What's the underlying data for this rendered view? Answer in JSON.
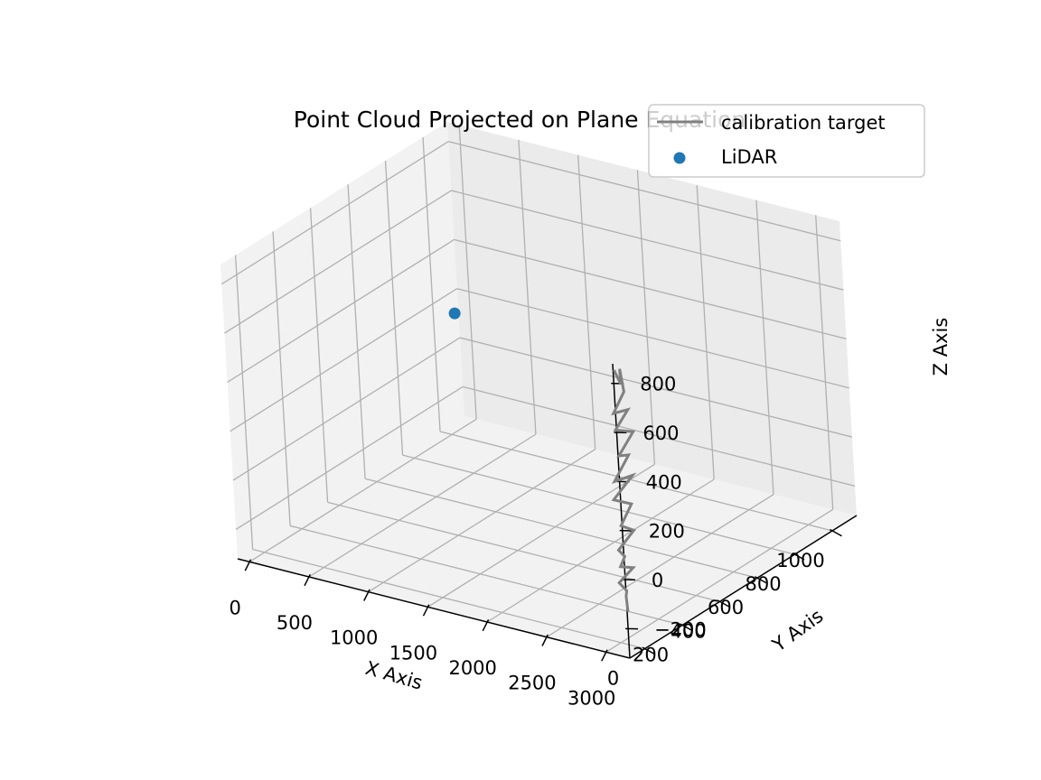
{
  "chart_data": {
    "type": "scatter3d",
    "title": "Point Cloud Projected on Plane Equation",
    "xlabel": "X Axis",
    "ylabel": "Y Axis",
    "zlabel": "Z Axis",
    "xlim": [
      -100,
      3200
    ],
    "ylim": [
      -80,
      1130
    ],
    "zlim": [
      -320,
      880
    ],
    "xticks": [
      0,
      500,
      1000,
      1500,
      2000,
      2500,
      3000
    ],
    "yticks": [
      0,
      200,
      400,
      600,
      800,
      1000
    ],
    "zticks": [
      -200,
      0,
      200,
      400,
      600,
      800
    ],
    "ztick_labels": [
      "−200",
      "0",
      "200",
      "400",
      "600",
      "800"
    ],
    "grid": true,
    "legend_position": "top-right",
    "series": [
      {
        "name": "calibration target",
        "kind": "line",
        "color": "#808080",
        "points": [
          [
            3000,
            45,
            -215
          ],
          [
            3000,
            40,
            -150
          ],
          [
            3000,
            45,
            -130
          ],
          [
            3000,
            8,
            -80
          ],
          [
            3000,
            85,
            -55
          ],
          [
            3000,
            20,
            -20
          ],
          [
            3000,
            45,
            10
          ],
          [
            3000,
            15,
            50
          ],
          [
            3000,
            100,
            90
          ],
          [
            3000,
            35,
            140
          ],
          [
            3000,
            95,
            200
          ],
          [
            3000,
            5,
            260
          ],
          [
            3000,
            110,
            310
          ],
          [
            3000,
            15,
            330
          ],
          [
            3000,
            95,
            400
          ],
          [
            3000,
            45,
            420
          ],
          [
            3000,
            125,
            480
          ],
          [
            3000,
            35,
            530
          ],
          [
            3000,
            105,
            580
          ],
          [
            3000,
            30,
            600
          ],
          [
            3000,
            90,
            660
          ],
          [
            3000,
            75,
            760
          ],
          [
            3000,
            75,
            700
          ],
          [
            3000,
            45,
            770
          ]
        ]
      },
      {
        "name": "LiDAR",
        "kind": "scatter",
        "color": "#1f77b4",
        "points": [
          [
            0,
            1050,
            150
          ]
        ]
      }
    ]
  }
}
